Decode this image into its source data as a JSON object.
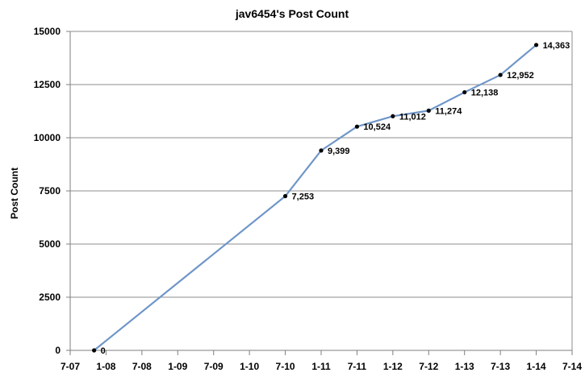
{
  "chart_data": {
    "type": "line",
    "title": "jav6454's Post Count",
    "xlabel": "",
    "ylabel": "Post Count",
    "x_ticks": [
      "7-07",
      "1-08",
      "7-08",
      "1-09",
      "7-09",
      "1-10",
      "7-10",
      "1-11",
      "7-11",
      "1-12",
      "7-12",
      "1-13",
      "7-13",
      "1-14",
      "7-14"
    ],
    "y_ticks": [
      "0",
      "2500",
      "5000",
      "7500",
      "10000",
      "12500",
      "15000"
    ],
    "ylim": [
      0,
      15000
    ],
    "xlim": [
      "7-07",
      "7-14"
    ],
    "grid": true,
    "legend": "none",
    "series": [
      {
        "color": "#6f96c8",
        "points": [
          {
            "x": "2007-11",
            "y": 0,
            "label": "0"
          },
          {
            "x": "2010-07",
            "y": 7253,
            "label": "7,253"
          },
          {
            "x": "2011-01",
            "y": 9399,
            "label": "9,399"
          },
          {
            "x": "2011-07",
            "y": 10524,
            "label": "10,524"
          },
          {
            "x": "2012-01",
            "y": 11012,
            "label": "11,012"
          },
          {
            "x": "2012-07",
            "y": 11274,
            "label": "11,274"
          },
          {
            "x": "2013-01",
            "y": 12138,
            "label": "12,138"
          },
          {
            "x": "2013-07",
            "y": 12952,
            "label": "12,952"
          },
          {
            "x": "2014-01",
            "y": 14363,
            "label": "14,363"
          }
        ]
      }
    ]
  }
}
